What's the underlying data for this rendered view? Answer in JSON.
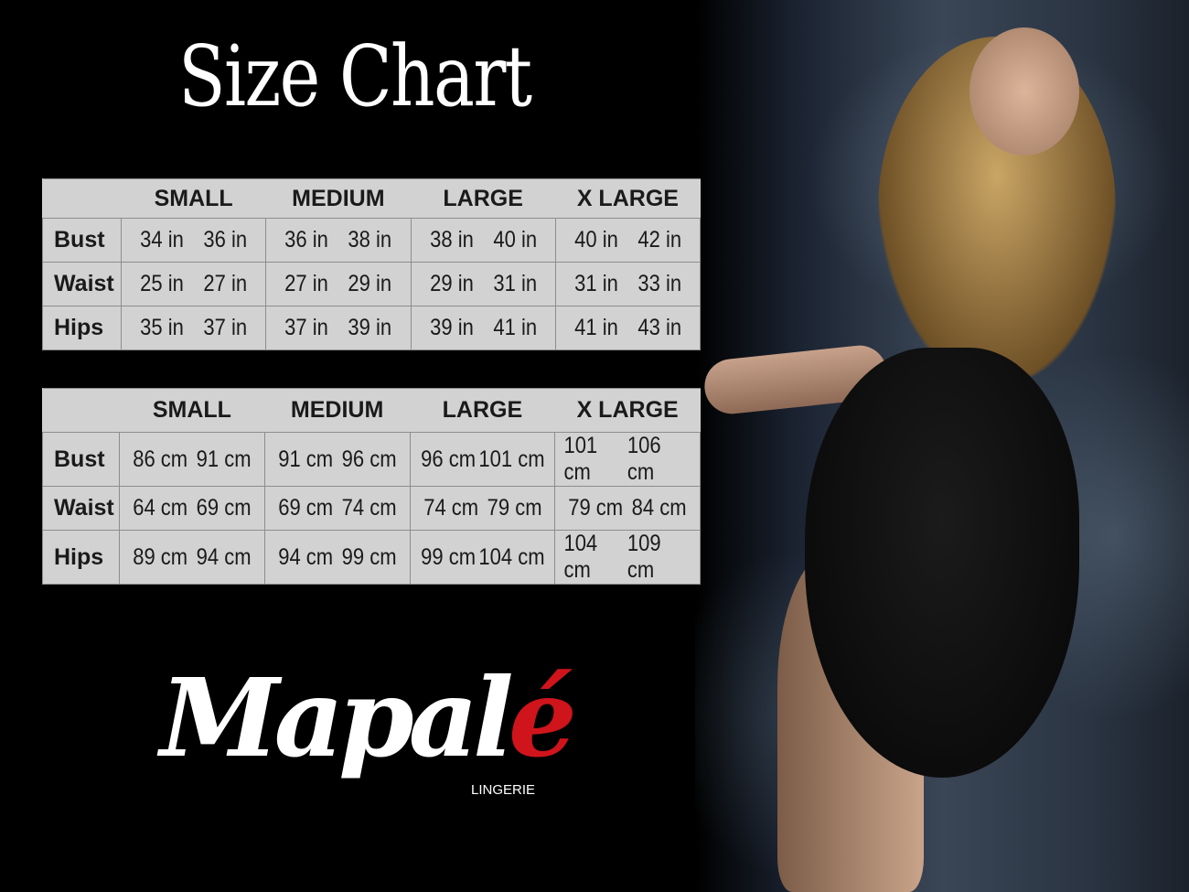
{
  "title": "Size Chart",
  "sizes": [
    "SMALL",
    "MEDIUM",
    "LARGE",
    "X LARGE"
  ],
  "measures": [
    "Bust",
    "Waist",
    "Hips"
  ],
  "inches": [
    [
      [
        "34 in",
        "36 in"
      ],
      [
        "36 in",
        "38 in"
      ],
      [
        "38 in",
        "40 in"
      ],
      [
        "40 in",
        "42 in"
      ]
    ],
    [
      [
        "25 in",
        "27 in"
      ],
      [
        "27 in",
        "29 in"
      ],
      [
        "29 in",
        "31 in"
      ],
      [
        "31 in",
        "33 in"
      ]
    ],
    [
      [
        "35 in",
        "37 in"
      ],
      [
        "37 in",
        "39 in"
      ],
      [
        "39 in",
        "41 in"
      ],
      [
        "41 in",
        "43 in"
      ]
    ]
  ],
  "centimeters": [
    [
      [
        "86 cm",
        "91 cm"
      ],
      [
        "91 cm",
        "96 cm"
      ],
      [
        "96 cm",
        "101 cm"
      ],
      [
        "101 cm",
        "106 cm"
      ]
    ],
    [
      [
        "64 cm",
        "69 cm"
      ],
      [
        "69 cm",
        "74 cm"
      ],
      [
        "74 cm",
        "79 cm"
      ],
      [
        "79 cm",
        "84 cm"
      ]
    ],
    [
      [
        "89 cm",
        "94 cm"
      ],
      [
        "94 cm",
        "99 cm"
      ],
      [
        "99 cm",
        "104 cm"
      ],
      [
        "104 cm",
        "109 cm"
      ]
    ]
  ],
  "logo": {
    "text": "Mapal",
    "accent": "é",
    "tagline": "LINGERIE",
    "accent_color": "#d0141c"
  }
}
